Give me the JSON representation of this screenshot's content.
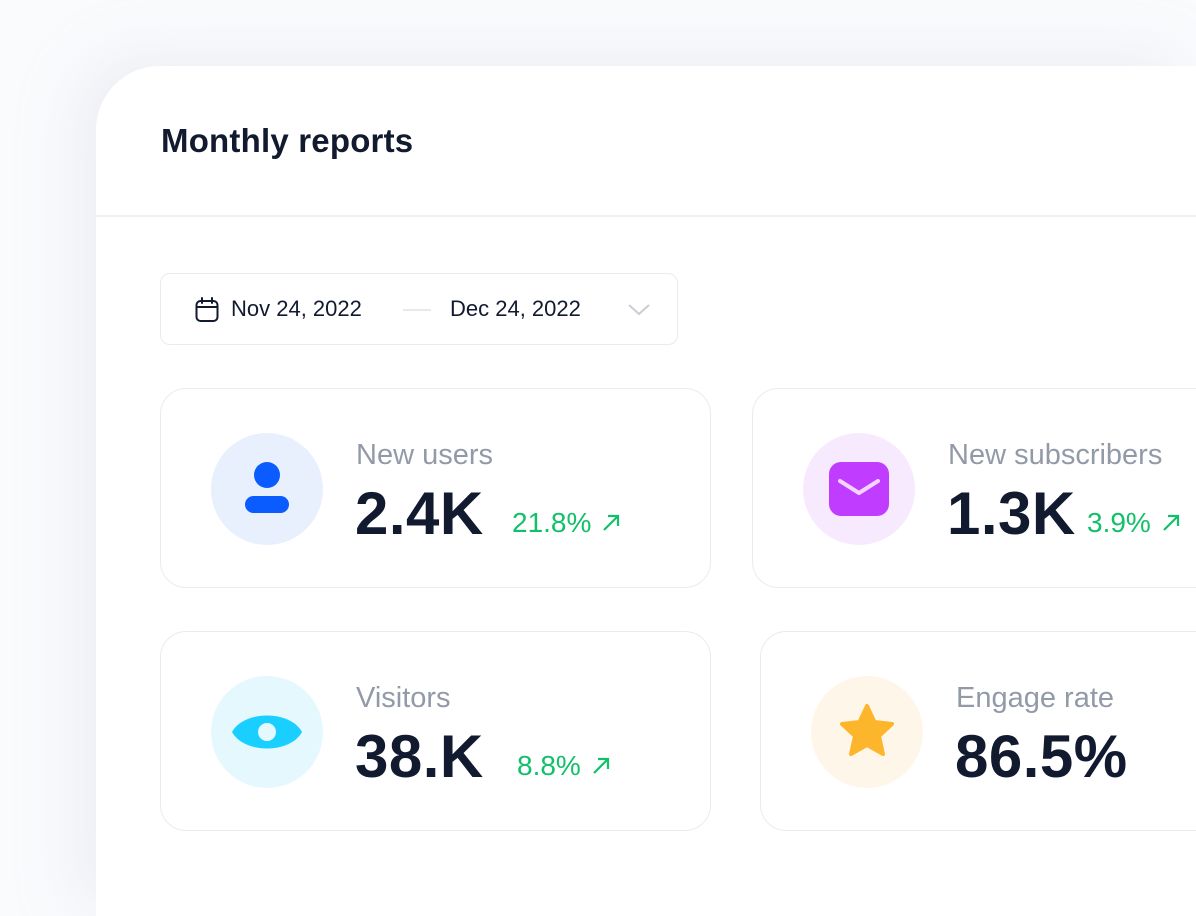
{
  "header": {
    "title": "Monthly reports"
  },
  "date_range": {
    "start": "Nov 24, 2022",
    "end": "Dec 24, 2022",
    "icon": "calendar-icon"
  },
  "colors": {
    "positive": "#12c06a",
    "text": "#111a2e",
    "muted": "#939aa7"
  },
  "stats": [
    {
      "label": "New users",
      "value": "2.4K",
      "change": "21.8%",
      "icon": "user-icon",
      "icon_color": "#0a5cff",
      "bg": "#e8effd"
    },
    {
      "label": "New subscribers",
      "value": "1.3K",
      "change": "3.9%",
      "icon": "mail-icon",
      "icon_color": "#c03cff",
      "bg": "#f8eafe"
    },
    {
      "label": "Visitors",
      "value": "38.K",
      "change": "8.8%",
      "icon": "eye-icon",
      "icon_color": "#19cfff",
      "bg": "#e4f8fd"
    },
    {
      "label": "Engage rate",
      "value": "86.5%",
      "icon": "star-icon",
      "icon_color": "#fdb52c",
      "bg": "#fff6ea"
    }
  ]
}
